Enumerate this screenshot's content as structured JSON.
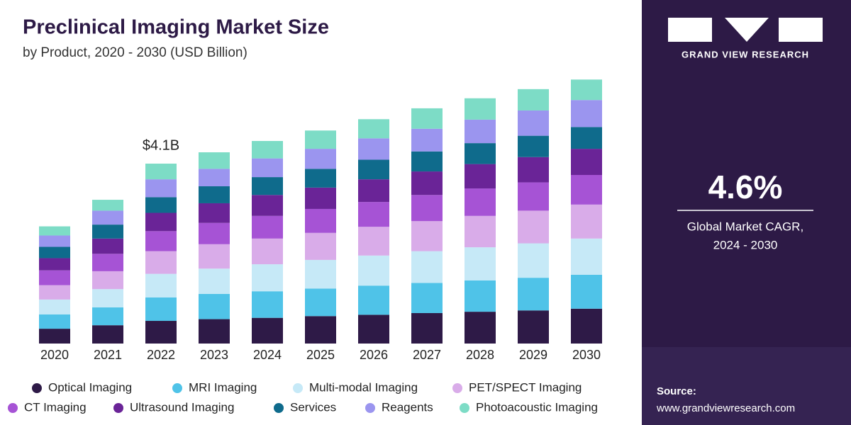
{
  "chart_data": {
    "type": "stacked_bar",
    "title": "Preclinical Imaging Market Size",
    "subtitle": "by Product, 2020 - 2030 (USD Billion)",
    "annotation": "$4.1B",
    "annotation_category": "2022",
    "categories": [
      "2020",
      "2021",
      "2022",
      "2023",
      "2024",
      "2025",
      "2026",
      "2027",
      "2028",
      "2029",
      "2030"
    ],
    "series": [
      {
        "name": "Optical Imaging",
        "color": "#2e1a47",
        "values": [
          0.34,
          0.42,
          0.52,
          0.56,
          0.59,
          0.63,
          0.66,
          0.7,
          0.73,
          0.76,
          0.8
        ]
      },
      {
        "name": "MRI Imaging",
        "color": "#4fc3e8",
        "values": [
          0.33,
          0.41,
          0.54,
          0.58,
          0.61,
          0.63,
          0.67,
          0.69,
          0.72,
          0.75,
          0.78
        ]
      },
      {
        "name": "Multi-modal Imaging",
        "color": "#c6e9f7",
        "values": [
          0.34,
          0.42,
          0.54,
          0.58,
          0.62,
          0.66,
          0.69,
          0.73,
          0.76,
          0.79,
          0.83
        ]
      },
      {
        "name": "PET/SPECT Imaging",
        "color": "#d9ace9",
        "values": [
          0.33,
          0.41,
          0.52,
          0.56,
          0.59,
          0.62,
          0.66,
          0.69,
          0.72,
          0.75,
          0.78
        ]
      },
      {
        "name": "CT Imaging",
        "color": "#a653d5",
        "values": [
          0.34,
          0.4,
          0.46,
          0.49,
          0.52,
          0.55,
          0.57,
          0.6,
          0.63,
          0.65,
          0.68
        ]
      },
      {
        "name": "Ultrasound Imaging",
        "color": "#6a2497",
        "values": [
          0.28,
          0.35,
          0.42,
          0.45,
          0.48,
          0.49,
          0.52,
          0.54,
          0.56,
          0.58,
          0.6
        ]
      },
      {
        "name": "Services",
        "color": "#0f6b8c",
        "values": [
          0.26,
          0.32,
          0.36,
          0.39,
          0.41,
          0.43,
          0.45,
          0.46,
          0.48,
          0.49,
          0.5
        ]
      },
      {
        "name": "Reagents",
        "color": "#9b95ef",
        "values": [
          0.26,
          0.32,
          0.41,
          0.4,
          0.43,
          0.46,
          0.49,
          0.52,
          0.54,
          0.58,
          0.62
        ]
      },
      {
        "name": "Photoacoustic Imaging",
        "color": "#7ddcc6",
        "values": [
          0.21,
          0.25,
          0.36,
          0.38,
          0.4,
          0.42,
          0.44,
          0.47,
          0.49,
          0.49,
          0.47
        ]
      }
    ]
  },
  "panel": {
    "brand": "GRAND VIEW RESEARCH",
    "cagr": "4.6%",
    "cagr_label": "Global Market CAGR,",
    "cagr_period": "2024 - 2030",
    "source_label": "Source:",
    "source_url": "www.grandviewresearch.com"
  }
}
